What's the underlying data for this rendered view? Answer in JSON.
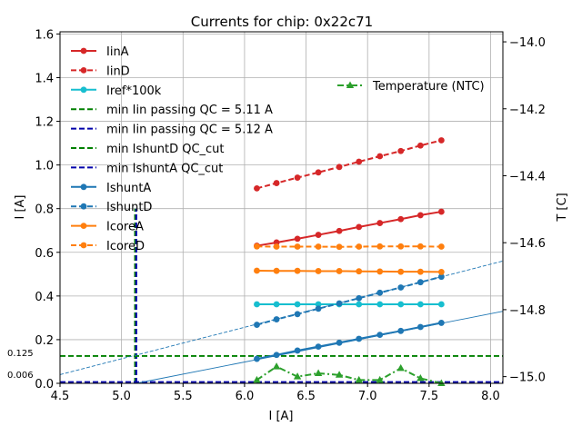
{
  "chart_data": {
    "type": "line",
    "title": "Currents for chip: 0x22c71",
    "xlabel": "I [A]",
    "ylabel": "I [A]",
    "ylabel_right": "T [C]",
    "xlim": [
      4.5,
      8.1
    ],
    "ylim": [
      0,
      1.61
    ],
    "ylim_right": [
      -15.02,
      -13.97
    ],
    "x_ticks": [
      4.5,
      5.0,
      5.5,
      6.0,
      6.5,
      7.0,
      7.5,
      8.0
    ],
    "y_ticks": [
      0.0,
      0.2,
      0.4,
      0.6,
      0.8,
      1.0,
      1.2,
      1.4,
      1.6
    ],
    "y_right_ticks": [
      -15.0,
      -14.8,
      -14.6,
      -14.4,
      -14.2,
      -14.0
    ],
    "grid": true,
    "colors": {
      "red": "#d62728",
      "cyan": "#17becf",
      "green": "#2ca02c",
      "blue": "#1f77b4",
      "orange": "#ff7f0e",
      "darkblue": "#0000aa",
      "darkgreen": "#008000"
    },
    "x": [
      6.1,
      6.26,
      6.43,
      6.6,
      6.77,
      6.93,
      7.1,
      7.27,
      7.43,
      7.6
    ],
    "series": [
      {
        "name": "IinA",
        "style": "solid",
        "color": "#d62728",
        "marker": "circle",
        "values": [
          0.63,
          0.645,
          0.662,
          0.68,
          0.698,
          0.716,
          0.734,
          0.752,
          0.77,
          0.786
        ]
      },
      {
        "name": "IinD",
        "style": "dashed",
        "color": "#d62728",
        "marker": "circle",
        "values": [
          0.893,
          0.917,
          0.942,
          0.966,
          0.991,
          1.015,
          1.04,
          1.064,
          1.089,
          1.113
        ]
      },
      {
        "name": "Iref*100k",
        "style": "solid",
        "color": "#17becf",
        "marker": "circle",
        "values": [
          0.362,
          0.362,
          0.362,
          0.362,
          0.362,
          0.362,
          0.362,
          0.362,
          0.362,
          0.362
        ]
      },
      {
        "name": "IshuntA",
        "style": "solid",
        "color": "#1f77b4",
        "marker": "circle",
        "values": [
          0.112,
          0.13,
          0.15,
          0.168,
          0.186,
          0.204,
          0.222,
          0.24,
          0.258,
          0.277
        ]
      },
      {
        "name": "IshuntD",
        "style": "dashed",
        "color": "#1f77b4",
        "marker": "circle",
        "values": [
          0.268,
          0.293,
          0.317,
          0.342,
          0.366,
          0.39,
          0.415,
          0.439,
          0.463,
          0.488
        ]
      },
      {
        "name": "IcoreA",
        "style": "solid",
        "color": "#ff7f0e",
        "marker": "circle",
        "values": [
          0.516,
          0.515,
          0.515,
          0.514,
          0.514,
          0.513,
          0.512,
          0.511,
          0.511,
          0.51
        ]
      },
      {
        "name": "IcoreD",
        "style": "dashed",
        "color": "#ff7f0e",
        "marker": "circle",
        "values": [
          0.627,
          0.626,
          0.626,
          0.626,
          0.625,
          0.626,
          0.627,
          0.627,
          0.627,
          0.626
        ]
      }
    ],
    "temperature": {
      "name": "Temperature (NTC)",
      "style": "dashdot",
      "color": "#2ca02c",
      "marker": "triangle",
      "values": [
        -15.01,
        -14.97,
        -15.0,
        -14.99,
        -14.995,
        -15.01,
        -15.01,
        -14.975,
        -15.005,
        -15.02
      ]
    },
    "fit_lines": [
      {
        "color": "#1f77b4",
        "style": "solid",
        "from": [
          5.12,
          0.0
        ],
        "to": [
          8.1,
          0.33
        ]
      },
      {
        "color": "#1f77b4",
        "style": "dashed",
        "from": [
          4.5,
          0.04
        ],
        "to": [
          8.1,
          0.56
        ]
      }
    ],
    "reference_lines": [
      {
        "name": "min Iin passing QC = 5.11 A",
        "orientation": "vertical",
        "value": 5.11,
        "color": "#008000",
        "style": "dashed",
        "ymax": 0.8
      },
      {
        "name": "min Iin passing QC = 5.12 A",
        "orientation": "vertical",
        "value": 5.12,
        "color": "#0000aa",
        "style": "dashed",
        "ymax": 0.8
      },
      {
        "name": "min IshuntD QC_cut",
        "orientation": "horizontal",
        "value": 0.125,
        "color": "#008000",
        "style": "dashed"
      },
      {
        "name": "min IshuntA QC_cut",
        "orientation": "horizontal",
        "value": 0.006,
        "color": "#0000aa",
        "style": "dashed"
      }
    ],
    "annotations": [
      {
        "text": "0.125",
        "value": 0.125
      },
      {
        "text": "0.006",
        "value": 0.006
      }
    ],
    "legend_left": [
      {
        "label": "IinA",
        "color": "#d62728",
        "style": "solid",
        "marker": "circle"
      },
      {
        "label": "IinD",
        "color": "#d62728",
        "style": "dashed",
        "marker": "circle"
      },
      {
        "label": "Iref*100k",
        "color": "#17becf",
        "style": "solid",
        "marker": "circle"
      },
      {
        "label": "min Iin passing QC = 5.11 A",
        "color": "#008000",
        "style": "dashed",
        "marker": "none"
      },
      {
        "label": "min Iin passing QC = 5.12 A",
        "color": "#0000aa",
        "style": "dashed",
        "marker": "none"
      },
      {
        "label": "min IshuntD QC_cut",
        "color": "#008000",
        "style": "dashed",
        "marker": "none"
      },
      {
        "label": "min IshuntA QC_cut",
        "color": "#0000aa",
        "style": "dashed",
        "marker": "none"
      },
      {
        "label": "IshuntA",
        "color": "#1f77b4",
        "style": "solid",
        "marker": "circle"
      },
      {
        "label": "IshuntD",
        "color": "#1f77b4",
        "style": "dashed",
        "marker": "circle"
      },
      {
        "label": "IcoreA",
        "color": "#ff7f0e",
        "style": "solid",
        "marker": "circle"
      },
      {
        "label": "IcoreD",
        "color": "#ff7f0e",
        "style": "dashed",
        "marker": "circle"
      }
    ],
    "legend_right": [
      {
        "label": "Temperature (NTC)",
        "color": "#2ca02c",
        "style": "dashdot",
        "marker": "triangle"
      }
    ]
  }
}
